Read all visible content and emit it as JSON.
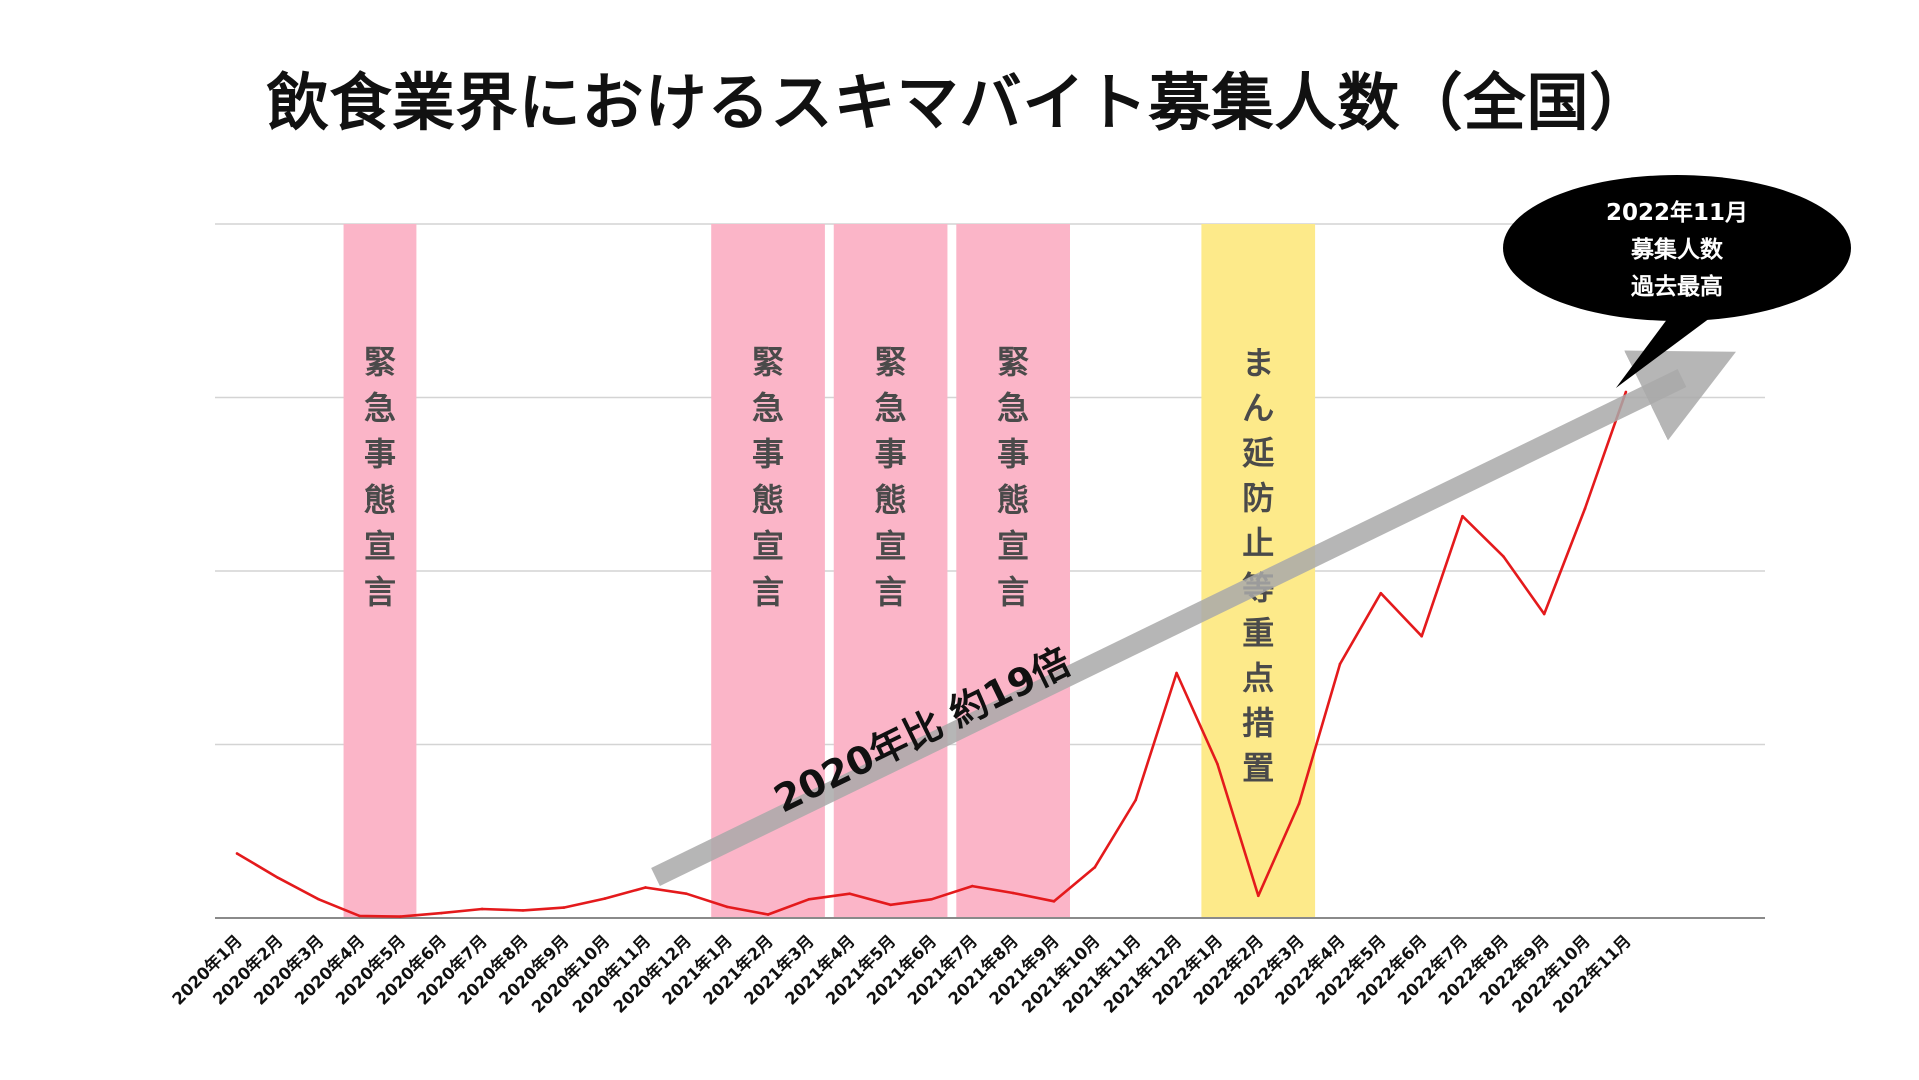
{
  "chart_data": {
    "type": "line",
    "title": "飲食業界におけるスキマバイト募集人数（全国）",
    "categories": [
      "2020年1月",
      "2020年2月",
      "2020年3月",
      "2020年4月",
      "2020年5月",
      "2020年6月",
      "2020年7月",
      "2020年8月",
      "2020年9月",
      "2020年10月",
      "2020年11月",
      "2020年12月",
      "2021年1月",
      "2021年2月",
      "2021年3月",
      "2021年4月",
      "2021年5月",
      "2021年6月",
      "2021年7月",
      "2021年8月",
      "2021年9月",
      "2021年10月",
      "2021年11月",
      "2021年12月",
      "2022年1月",
      "2022年2月",
      "2022年3月",
      "2022年4月",
      "2022年5月",
      "2022年6月",
      "2022年7月",
      "2022年8月",
      "2022年9月",
      "2022年10月",
      "2022年11月"
    ],
    "series": [
      {
        "values": [
          0.93,
          0.58,
          0.27,
          0.03,
          0.02,
          0.07,
          0.13,
          0.11,
          0.15,
          0.28,
          0.44,
          0.35,
          0.16,
          0.05,
          0.27,
          0.35,
          0.19,
          0.27,
          0.46,
          0.36,
          0.24,
          0.73,
          1.7,
          3.53,
          2.22,
          0.32,
          1.65,
          3.66,
          4.68,
          4.06,
          5.79,
          5.21,
          4.38,
          5.9,
          7.58
        ]
      }
    ],
    "ylim": [
      0,
      10
    ],
    "grid": true,
    "line_color": "#e41a1c",
    "bands": [
      {
        "label": "緊急事態宣言",
        "from": "2020年4月",
        "to": "2020年5月",
        "color": "#fbb5c8"
      },
      {
        "label": "緊急事態宣言",
        "from": "2021年1月",
        "to": "2021年3月",
        "color": "#fbb5c8"
      },
      {
        "label": "緊急事態宣言",
        "from": "2021年4月",
        "to": "2021年6月",
        "color": "#fbb5c8"
      },
      {
        "label": "緊急事態宣言",
        "from": "2021年7月",
        "to": "2021年9月",
        "color": "#fbb5c8"
      },
      {
        "label": "まん延防止等重点措置",
        "from": "2022年1月",
        "to": "2022年3月",
        "color": "#fdea8a"
      }
    ],
    "trend_arrow": {
      "label": "2020年比 約19倍",
      "from": "2020年11月",
      "to": "2022年11月"
    },
    "callout": {
      "lines": [
        "2022年11月",
        "募集人数",
        "過去最高"
      ],
      "point": "2022年11月"
    }
  }
}
